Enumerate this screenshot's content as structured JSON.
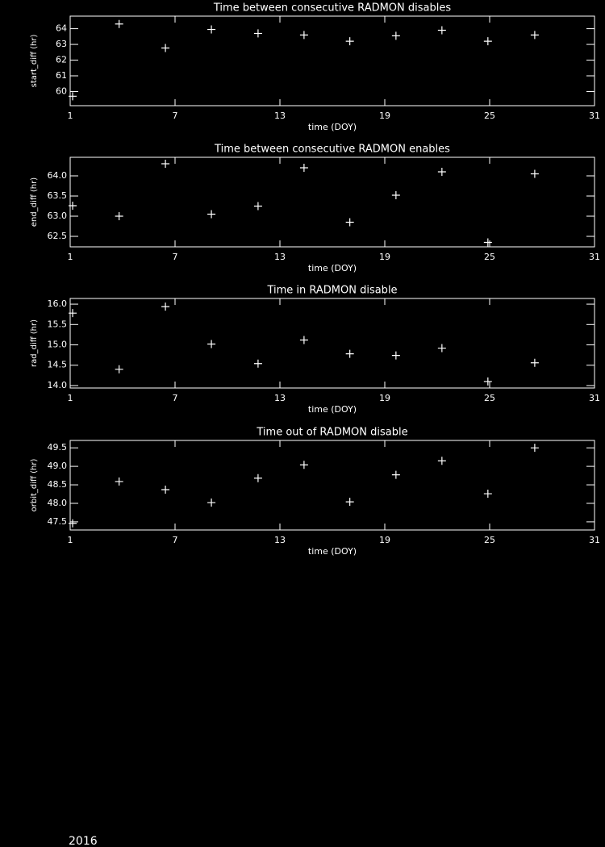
{
  "chart_data": [
    {
      "type": "scatter",
      "title": "Time between consecutive RADMON disables",
      "xlabel": "time (DOY)",
      "ylabel": "start_diff (hr)",
      "x": [
        1.14,
        3.8,
        6.45,
        9.08,
        11.75,
        14.38,
        17.0,
        19.64,
        22.27,
        24.9,
        27.58
      ],
      "values": [
        59.7,
        64.3,
        62.77,
        63.95,
        63.7,
        63.6,
        63.2,
        63.55,
        63.9,
        63.2,
        63.6
      ],
      "color": "#ffffff",
      "xlim": [
        1,
        31
      ],
      "xticks": [
        1,
        7,
        13,
        19,
        25,
        31
      ],
      "ylim": [
        59.1,
        64.8
      ],
      "yticks": [
        60,
        61,
        62,
        63,
        64
      ]
    },
    {
      "type": "scatter",
      "title": "Time between consecutive RADMON enables",
      "xlabel": "time (DOY)",
      "ylabel": "end_diff (hr)",
      "x": [
        1.14,
        3.8,
        6.45,
        9.08,
        11.75,
        14.38,
        17.0,
        19.64,
        22.27,
        24.9,
        27.58
      ],
      "values": [
        63.26,
        63.0,
        64.3,
        63.05,
        63.25,
        64.2,
        62.85,
        63.52,
        64.1,
        62.35,
        64.05
      ],
      "color": "#ffffff",
      "xlim": [
        1,
        31
      ],
      "xticks": [
        1,
        7,
        13,
        19,
        25,
        31
      ],
      "ylim": [
        62.24,
        64.46
      ],
      "yticks": [
        62.5,
        {
          "value": 63,
          "label": "63.0"
        },
        63.5,
        {
          "value": 64,
          "label": "64.0"
        }
      ]
    },
    {
      "type": "scatter",
      "title": "Time in RADMON disable",
      "xlabel": "time (DOY)",
      "ylabel": "rad_diff (hr)",
      "x": [
        1.14,
        3.8,
        6.45,
        9.08,
        11.75,
        14.38,
        17.0,
        19.64,
        22.27,
        24.9,
        27.58
      ],
      "values": [
        15.78,
        14.4,
        15.94,
        15.02,
        14.54,
        15.12,
        14.78,
        14.74,
        14.92,
        14.1,
        14.56
      ],
      "color": "#ffffff",
      "xlim": [
        1,
        31
      ],
      "xticks": [
        1,
        7,
        13,
        19,
        25,
        31
      ],
      "ylim": [
        13.94,
        16.14
      ],
      "yticks": [
        {
          "value": 14,
          "label": "14.0"
        },
        14.5,
        {
          "value": 15,
          "label": "15.0"
        },
        15.5,
        {
          "value": 16,
          "label": "16.0"
        }
      ]
    },
    {
      "type": "scatter",
      "title": "Time out of RADMON disable",
      "xlabel": "time (DOY)",
      "ylabel": "orbit_diff (hr)",
      "x": [
        1.14,
        3.8,
        6.45,
        9.08,
        11.75,
        14.38,
        17.0,
        19.64,
        22.27,
        24.9,
        27.58
      ],
      "values": [
        47.46,
        48.59,
        48.37,
        48.02,
        48.68,
        49.04,
        48.04,
        48.77,
        49.15,
        48.26,
        49.5
      ],
      "color": "#ffffff",
      "xlim": [
        1,
        31
      ],
      "xticks": [
        1,
        7,
        13,
        19,
        25,
        31
      ],
      "ylim": [
        47.28,
        49.7
      ],
      "yticks": [
        47.5,
        {
          "value": 48,
          "label": "48.0"
        },
        48.5,
        {
          "value": 49,
          "label": "49.0"
        },
        49.5
      ]
    }
  ],
  "footer": "2016"
}
